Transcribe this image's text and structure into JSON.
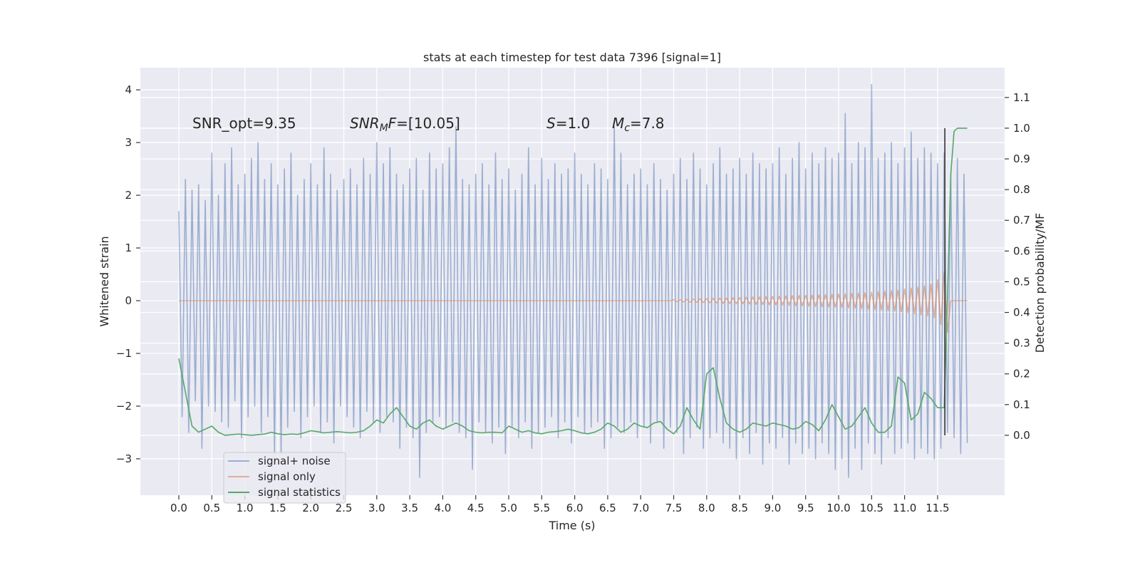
{
  "chart_data": {
    "type": "line",
    "title": "stats at each timestep for test data 7396 [signal=1]",
    "xlabel": "Time (s)",
    "ylabel": "Whitened strain",
    "y2label": "Detection probability/MF",
    "xlim": [
      -0.583,
      12.516
    ],
    "ylim": [
      -3.69,
      4.42
    ],
    "y2lim": [
      -0.195,
      1.197
    ],
    "grid": true,
    "legend": "lower left",
    "xticks": [
      {
        "value": 0,
        "label": "0.0"
      },
      0.5,
      {
        "value": 1,
        "label": "1.0"
      },
      1.5,
      {
        "value": 2,
        "label": "2.0"
      },
      2.5,
      {
        "value": 3,
        "label": "3.0"
      },
      3.5,
      {
        "value": 4,
        "label": "4.0"
      },
      4.5,
      {
        "value": 5,
        "label": "5.0"
      },
      5.5,
      {
        "value": 6,
        "label": "6.0"
      },
      6.5,
      {
        "value": 7,
        "label": "7.0"
      },
      7.5,
      {
        "value": 8,
        "label": "8.0"
      },
      8.5,
      {
        "value": 9,
        "label": "9.0"
      },
      9.5,
      {
        "value": 10,
        "label": "10.0"
      },
      10.5,
      {
        "value": 11,
        "label": "11.0"
      },
      11.5
    ],
    "yticks": [
      {
        "value": -3,
        "label": "−3"
      },
      {
        "value": -2,
        "label": "−2"
      },
      {
        "value": -1,
        "label": "−1"
      },
      0,
      1,
      2,
      3,
      4
    ],
    "y2ticks": [
      {
        "value": 0,
        "label": "0.0"
      },
      0.1,
      0.2,
      0.3,
      0.4,
      0.5,
      0.6,
      0.7,
      0.8,
      0.9,
      {
        "value": 1,
        "label": "1.0"
      },
      1.1
    ],
    "annotations": [
      {
        "parts": [
          {
            "text": "SNR_opt=9.35"
          }
        ]
      },
      {
        "parts": [
          {
            "text": "SNR",
            "italic": true
          },
          {
            "text": "M",
            "italic": true,
            "sub": true
          },
          {
            "text": "F",
            "italic": true
          },
          {
            "text": "=[10.05]"
          }
        ]
      },
      {
        "parts": [
          {
            "text": "S",
            "italic": true
          },
          {
            "text": "=1.0"
          }
        ]
      },
      {
        "parts": [
          {
            "text": "M",
            "italic": true
          },
          {
            "text": "c",
            "italic": true,
            "sub": true
          },
          {
            "text": "=7.8"
          }
        ]
      }
    ],
    "markers": [
      {
        "x": 11.61,
        "ymin": 0,
        "ymax": 1,
        "color": "#333333"
      }
    ],
    "series": [
      {
        "name": "signal+ noise",
        "color": "#4c72b0",
        "alpha": 0.5,
        "x": [
          0,
          0.05,
          0.1,
          0.15,
          0.2,
          0.25,
          0.3,
          0.35,
          0.4,
          0.45,
          0.5,
          0.55,
          0.6,
          0.65,
          0.7,
          0.75,
          0.8,
          0.85,
          0.9,
          0.95,
          1,
          1.05,
          1.1,
          1.15,
          1.2,
          1.25,
          1.3,
          1.35,
          1.4,
          1.45,
          1.5,
          1.55,
          1.6,
          1.65,
          1.7,
          1.75,
          1.8,
          1.85,
          1.9,
          1.95,
          2,
          2.05,
          2.1,
          2.15,
          2.2,
          2.25,
          2.3,
          2.35,
          2.4,
          2.45,
          2.5,
          2.55,
          2.6,
          2.65,
          2.7,
          2.75,
          2.8,
          2.85,
          2.9,
          2.95,
          3,
          3.05,
          3.1,
          3.15,
          3.2,
          3.25,
          3.3,
          3.35,
          3.4,
          3.45,
          3.5,
          3.55,
          3.6,
          3.65,
          3.7,
          3.75,
          3.8,
          3.85,
          3.9,
          3.95,
          4,
          4.05,
          4.1,
          4.15,
          4.2,
          4.25,
          4.3,
          4.35,
          4.4,
          4.45,
          4.5,
          4.55,
          4.6,
          4.65,
          4.7,
          4.75,
          4.8,
          4.85,
          4.9,
          4.95,
          5,
          5.05,
          5.1,
          5.15,
          5.2,
          5.25,
          5.3,
          5.35,
          5.4,
          5.45,
          5.5,
          5.55,
          5.6,
          5.65,
          5.7,
          5.75,
          5.8,
          5.85,
          5.9,
          5.95,
          6,
          6.05,
          6.1,
          6.15,
          6.2,
          6.25,
          6.3,
          6.35,
          6.4,
          6.45,
          6.5,
          6.55,
          6.6,
          6.65,
          6.7,
          6.75,
          6.8,
          6.85,
          6.9,
          6.95,
          7,
          7.05,
          7.1,
          7.15,
          7.2,
          7.25,
          7.3,
          7.35,
          7.4,
          7.45,
          7.5,
          7.55,
          7.6,
          7.65,
          7.7,
          7.75,
          7.8,
          7.85,
          7.9,
          7.95,
          8,
          8.05,
          8.1,
          8.15,
          8.2,
          8.25,
          8.3,
          8.35,
          8.4,
          8.45,
          8.5,
          8.55,
          8.6,
          8.65,
          8.7,
          8.75,
          8.8,
          8.85,
          8.9,
          8.95,
          9,
          9.05,
          9.1,
          9.15,
          9.2,
          9.25,
          9.3,
          9.35,
          9.4,
          9.45,
          9.5,
          9.55,
          9.6,
          9.65,
          9.7,
          9.75,
          9.8,
          9.85,
          9.9,
          9.95,
          10,
          10.05,
          10.1,
          10.15,
          10.2,
          10.25,
          10.3,
          10.35,
          10.4,
          10.45,
          10.5,
          10.55,
          10.6,
          10.65,
          10.7,
          10.75,
          10.8,
          10.85,
          10.9,
          10.95,
          11,
          11.05,
          11.1,
          11.15,
          11.2,
          11.25,
          11.3,
          11.35,
          11.4,
          11.45,
          11.5,
          11.55,
          11.6,
          11.65,
          11.7,
          11.75,
          11.8,
          11.85,
          11.9,
          11.95
        ],
        "values": [
          1.7,
          -2.2,
          2.3,
          -2.5,
          2.1,
          -1.9,
          2.2,
          -2.8,
          1.9,
          -2.0,
          2.8,
          -2.1,
          2.0,
          -2.3,
          2.6,
          -2.4,
          2.9,
          -1.9,
          2.2,
          -2.6,
          2.4,
          -2.2,
          2.7,
          -2.0,
          3.0,
          -2.5,
          2.3,
          -2.2,
          2.6,
          -2.9,
          2.2,
          -2.9,
          2.5,
          -2.4,
          2.8,
          -2.1,
          2.0,
          -2.6,
          2.3,
          -2.2,
          2.6,
          -2.0,
          2.2,
          -2.5,
          2.9,
          -2.3,
          2.4,
          -2.7,
          2.1,
          -2.0,
          2.3,
          -2.2,
          2.5,
          -2.4,
          2.2,
          -2.6,
          2.7,
          -2.1,
          2.4,
          -2.3,
          3.0,
          -2.5,
          2.6,
          -2.2,
          2.9,
          -2.3,
          2.4,
          -2.8,
          2.2,
          -2.4,
          2.5,
          -2.6,
          2.7,
          -3.35,
          2.1,
          -2.5,
          2.8,
          -2.3,
          2.5,
          -2.2,
          2.6,
          -2.4,
          2.9,
          -2.3,
          3.3,
          -2.5,
          2.3,
          -2.6,
          2.2,
          -3.2,
          2.4,
          -2.3,
          2.6,
          -2.5,
          2.2,
          -2.7,
          2.8,
          -2.4,
          2.3,
          -2.9,
          2.5,
          -2.4,
          2.1,
          -2.6,
          2.4,
          -2.3,
          2.9,
          -2.8,
          2.2,
          -2.5,
          2.7,
          -2.4,
          2.3,
          -2.2,
          2.6,
          -2.6,
          2.4,
          -2.3,
          2.5,
          -2.7,
          2.8,
          -2.2,
          2.4,
          -2.5,
          2.2,
          -2.4,
          2.6,
          -2.3,
          2.5,
          -2.8,
          2.3,
          -2.6,
          3.3,
          -2.4,
          2.8,
          -2.5,
          2.2,
          -2.3,
          2.4,
          -2.6,
          2.5,
          -2.4,
          2.2,
          -2.7,
          2.6,
          -2.3,
          2.3,
          -2.8,
          2.1,
          -2.4,
          2.4,
          -2.5,
          2.7,
          -2.9,
          2.3,
          -2.6,
          2.8,
          -2.4,
          2.5,
          -2.8,
          2.2,
          -2.6,
          2.6,
          -2.5,
          2.9,
          -2.7,
          2.4,
          -2.8,
          2.5,
          -3.0,
          2.7,
          -2.6,
          2.4,
          -2.9,
          2.8,
          -2.5,
          2.6,
          -3.1,
          2.5,
          -2.7,
          2.6,
          -2.8,
          2.9,
          -2.6,
          2.4,
          -3.1,
          2.7,
          -2.7,
          3.0,
          -2.9,
          2.5,
          -2.8,
          2.8,
          -3.0,
          2.6,
          -2.7,
          2.9,
          -2.9,
          2.7,
          -3.2,
          2.8,
          -3.0,
          3.55,
          -3.35,
          2.6,
          -2.8,
          3.0,
          -3.2,
          2.9,
          -2.7,
          4.1,
          -2.9,
          2.7,
          -3.1,
          2.8,
          -2.6,
          3.0,
          -2.9,
          2.6,
          -2.8,
          2.9,
          -2.7,
          3.2,
          -3.0,
          2.7,
          -2.8,
          2.9,
          -2.9,
          2.8,
          -3.0,
          2.6,
          -2.8,
          2.8,
          -2.5,
          2.4,
          -2.6,
          2.7,
          -2.9,
          2.4,
          -2.7
        ]
      },
      {
        "name": "signal only",
        "color": "#dd8452",
        "alpha": 0.6,
        "x": [
          0,
          7.45,
          7.5,
          7.55,
          7.6,
          7.65,
          7.7,
          7.75,
          7.8,
          7.85,
          7.9,
          7.95,
          8,
          8.05,
          8.1,
          8.15,
          8.2,
          8.25,
          8.3,
          8.35,
          8.4,
          8.45,
          8.5,
          8.55,
          8.6,
          8.65,
          8.7,
          8.75,
          8.8,
          8.85,
          8.9,
          8.95,
          9,
          9.05,
          9.1,
          9.15,
          9.2,
          9.25,
          9.3,
          9.35,
          9.4,
          9.45,
          9.5,
          9.55,
          9.6,
          9.65,
          9.7,
          9.75,
          9.8,
          9.85,
          9.9,
          9.95,
          10,
          10.05,
          10.1,
          10.15,
          10.2,
          10.25,
          10.3,
          10.35,
          10.4,
          10.45,
          10.5,
          10.55,
          10.6,
          10.65,
          10.7,
          10.75,
          10.8,
          10.85,
          10.9,
          10.95,
          11,
          11.05,
          11.1,
          11.15,
          11.2,
          11.25,
          11.3,
          11.35,
          11.4,
          11.45,
          11.5,
          11.55,
          11.6,
          11.65,
          11.7,
          11.95
        ],
        "values": [
          0,
          0,
          0.02,
          -0.02,
          0.02,
          -0.025,
          0.025,
          -0.03,
          0.03,
          -0.03,
          0.035,
          -0.035,
          0.04,
          -0.04,
          0.045,
          -0.045,
          0.05,
          -0.05,
          0.05,
          -0.055,
          0.055,
          -0.06,
          0.06,
          -0.06,
          0.065,
          -0.065,
          0.07,
          -0.07,
          0.07,
          -0.075,
          0.075,
          -0.08,
          0.08,
          -0.08,
          0.085,
          -0.085,
          0.09,
          -0.09,
          0.095,
          -0.095,
          0.1,
          -0.1,
          0.1,
          -0.105,
          0.105,
          -0.11,
          0.11,
          -0.115,
          0.115,
          -0.12,
          0.12,
          -0.125,
          0.125,
          -0.13,
          0.13,
          -0.135,
          0.14,
          -0.14,
          0.145,
          -0.15,
          0.15,
          -0.155,
          0.16,
          -0.165,
          0.17,
          -0.175,
          0.18,
          -0.185,
          0.19,
          -0.195,
          0.2,
          -0.21,
          0.22,
          -0.23,
          0.24,
          -0.25,
          0.26,
          -0.27,
          0.28,
          -0.29,
          0.31,
          -0.33,
          0.4,
          -0.45,
          0.55,
          -0.6,
          0,
          0
        ]
      },
      {
        "name": "signal statistics",
        "color": "#55a868",
        "alpha": 1,
        "axis": "y2",
        "x": [
          0,
          0.1,
          0.2,
          0.3,
          0.4,
          0.5,
          0.6,
          0.7,
          0.8,
          0.9,
          1,
          1.1,
          1.2,
          1.3,
          1.4,
          1.5,
          1.6,
          1.7,
          1.8,
          1.9,
          2,
          2.1,
          2.2,
          2.3,
          2.4,
          2.5,
          2.6,
          2.7,
          2.8,
          2.9,
          3,
          3.1,
          3.2,
          3.3,
          3.4,
          3.5,
          3.6,
          3.7,
          3.8,
          3.9,
          4,
          4.1,
          4.2,
          4.3,
          4.4,
          4.5,
          4.6,
          4.7,
          4.8,
          4.9,
          5,
          5.1,
          5.2,
          5.3,
          5.4,
          5.5,
          5.6,
          5.7,
          5.8,
          5.9,
          6,
          6.1,
          6.2,
          6.3,
          6.4,
          6.5,
          6.6,
          6.7,
          6.8,
          6.9,
          7,
          7.1,
          7.2,
          7.3,
          7.4,
          7.5,
          7.6,
          7.7,
          7.8,
          7.9,
          8,
          8.1,
          8.2,
          8.3,
          8.4,
          8.5,
          8.6,
          8.7,
          8.8,
          8.9,
          9,
          9.1,
          9.2,
          9.3,
          9.4,
          9.5,
          9.6,
          9.7,
          9.8,
          9.9,
          10,
          10.1,
          10.2,
          10.3,
          10.4,
          10.5,
          10.6,
          10.7,
          10.8,
          10.9,
          11,
          11.1,
          11.2,
          11.3,
          11.4,
          11.5,
          11.6,
          11.65,
          11.7,
          11.75,
          11.8,
          11.9,
          11.95
        ],
        "values": [
          0.25,
          0.14,
          0.03,
          0.01,
          0.02,
          0.03,
          0.01,
          0,
          0.002,
          0.004,
          0.002,
          0,
          0.002,
          0.004,
          0.01,
          0.005,
          0.002,
          0.004,
          0.003,
          0.008,
          0.015,
          0.012,
          0.008,
          0.01,
          0.012,
          0.01,
          0.008,
          0.01,
          0.015,
          0.03,
          0.05,
          0.04,
          0.07,
          0.09,
          0.06,
          0.03,
          0.02,
          0.04,
          0.05,
          0.03,
          0.02,
          0.03,
          0.04,
          0.03,
          0.015,
          0.01,
          0.008,
          0.01,
          0.01,
          0.008,
          0.03,
          0.02,
          0.01,
          0.015,
          0.008,
          0.005,
          0.01,
          0.012,
          0.015,
          0.02,
          0.015,
          0.008,
          0.005,
          0.01,
          0.02,
          0.04,
          0.03,
          0.01,
          0.02,
          0.04,
          0.03,
          0.025,
          0.04,
          0.045,
          0.02,
          0.005,
          0.03,
          0.09,
          0.05,
          0.02,
          0.2,
          0.22,
          0.12,
          0.04,
          0.02,
          0.01,
          0.02,
          0.04,
          0.035,
          0.03,
          0.04,
          0.035,
          0.03,
          0.02,
          0.025,
          0.045,
          0.035,
          0.015,
          0.05,
          0.1,
          0.06,
          0.02,
          0.03,
          0.06,
          0.09,
          0.04,
          0.01,
          0.01,
          0.03,
          0.19,
          0.17,
          0.05,
          0.07,
          0.14,
          0.12,
          0.09,
          0.09,
          0.45,
          0.85,
          0.99,
          1,
          1,
          1
        ]
      }
    ]
  }
}
